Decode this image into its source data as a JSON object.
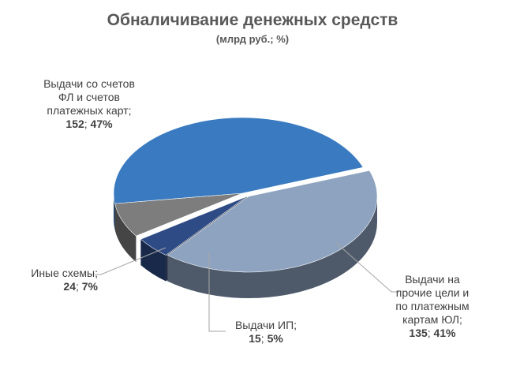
{
  "chart_data": {
    "type": "pie",
    "title": "Обналичивание денежных средств",
    "subtitle": "(млрд руб.; %)",
    "slices": [
      {
        "key": "fl",
        "label_lines": [
          "Выдачи со счетов",
          "ФЛ и счетов",
          "платежных карт;"
        ],
        "value": 152,
        "percent": "47%",
        "color": "#3a7ac0"
      },
      {
        "key": "yl",
        "label_lines": [
          "Выдачи на",
          "прочие цели и",
          "по платежным",
          "картам ЮЛ;"
        ],
        "value": 135,
        "percent": "41%",
        "color": "#8da3c0"
      },
      {
        "key": "ip",
        "label_lines": [
          "Выдачи ИП;"
        ],
        "value": 15,
        "percent": "5%",
        "color": "#2e4b86"
      },
      {
        "key": "other",
        "label_lines": [
          "Иные схемы;"
        ],
        "value": 24,
        "percent": "7%",
        "color": "#7d7d7d"
      }
    ],
    "legend": "none"
  }
}
